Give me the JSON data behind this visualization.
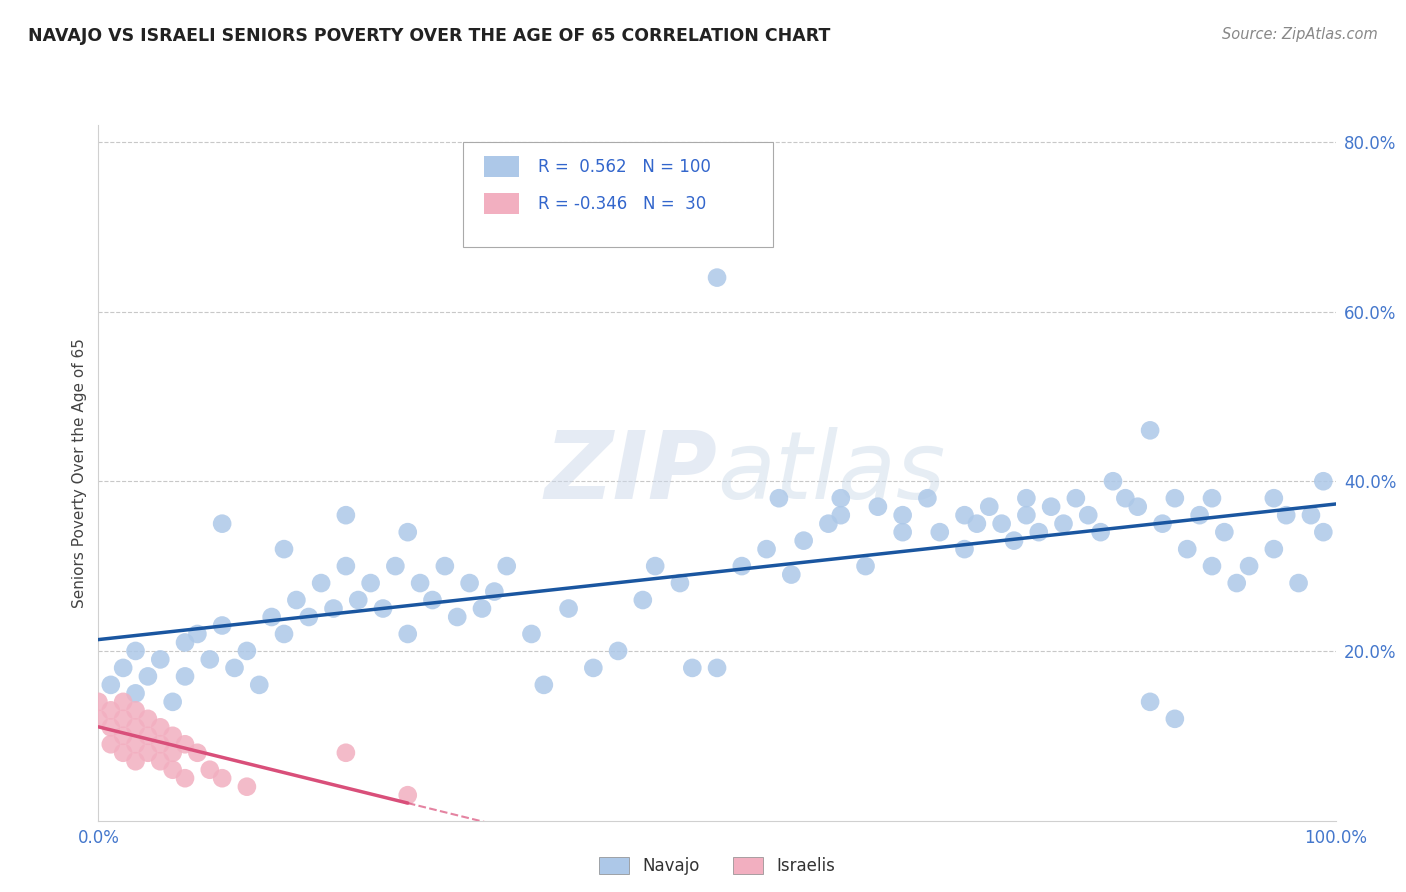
{
  "title": "NAVAJO VS ISRAELI SENIORS POVERTY OVER THE AGE OF 65 CORRELATION CHART",
  "source": "Source: ZipAtlas.com",
  "ylabel": "Seniors Poverty Over the Age of 65",
  "navajo_R": 0.562,
  "navajo_N": 100,
  "israeli_R": -0.346,
  "israeli_N": 30,
  "watermark": "ZIPatlas",
  "navajo_color": "#adc8e8",
  "israeli_color": "#f2afc0",
  "navajo_line_color": "#1a56a0",
  "israeli_line_color": "#d94f7a",
  "navajo_points": [
    [
      0.01,
      0.16
    ],
    [
      0.02,
      0.18
    ],
    [
      0.03,
      0.15
    ],
    [
      0.03,
      0.2
    ],
    [
      0.04,
      0.17
    ],
    [
      0.05,
      0.19
    ],
    [
      0.06,
      0.14
    ],
    [
      0.07,
      0.21
    ],
    [
      0.07,
      0.17
    ],
    [
      0.08,
      0.22
    ],
    [
      0.09,
      0.19
    ],
    [
      0.1,
      0.23
    ],
    [
      0.1,
      0.35
    ],
    [
      0.11,
      0.18
    ],
    [
      0.12,
      0.2
    ],
    [
      0.13,
      0.16
    ],
    [
      0.14,
      0.24
    ],
    [
      0.15,
      0.22
    ],
    [
      0.15,
      0.32
    ],
    [
      0.16,
      0.26
    ],
    [
      0.17,
      0.24
    ],
    [
      0.18,
      0.28
    ],
    [
      0.19,
      0.25
    ],
    [
      0.2,
      0.3
    ],
    [
      0.2,
      0.36
    ],
    [
      0.21,
      0.26
    ],
    [
      0.22,
      0.28
    ],
    [
      0.23,
      0.25
    ],
    [
      0.24,
      0.3
    ],
    [
      0.25,
      0.22
    ],
    [
      0.25,
      0.34
    ],
    [
      0.26,
      0.28
    ],
    [
      0.27,
      0.26
    ],
    [
      0.28,
      0.3
    ],
    [
      0.29,
      0.24
    ],
    [
      0.3,
      0.28
    ],
    [
      0.31,
      0.25
    ],
    [
      0.32,
      0.27
    ],
    [
      0.33,
      0.3
    ],
    [
      0.35,
      0.22
    ],
    [
      0.36,
      0.16
    ],
    [
      0.38,
      0.25
    ],
    [
      0.4,
      0.18
    ],
    [
      0.42,
      0.2
    ],
    [
      0.44,
      0.26
    ],
    [
      0.45,
      0.3
    ],
    [
      0.47,
      0.28
    ],
    [
      0.48,
      0.18
    ],
    [
      0.5,
      0.18
    ],
    [
      0.5,
      0.64
    ],
    [
      0.52,
      0.3
    ],
    [
      0.54,
      0.32
    ],
    [
      0.55,
      0.38
    ],
    [
      0.56,
      0.29
    ],
    [
      0.57,
      0.33
    ],
    [
      0.59,
      0.35
    ],
    [
      0.6,
      0.36
    ],
    [
      0.6,
      0.38
    ],
    [
      0.62,
      0.3
    ],
    [
      0.63,
      0.37
    ],
    [
      0.65,
      0.34
    ],
    [
      0.65,
      0.36
    ],
    [
      0.67,
      0.38
    ],
    [
      0.68,
      0.34
    ],
    [
      0.7,
      0.32
    ],
    [
      0.7,
      0.36
    ],
    [
      0.71,
      0.35
    ],
    [
      0.72,
      0.37
    ],
    [
      0.73,
      0.35
    ],
    [
      0.74,
      0.33
    ],
    [
      0.75,
      0.38
    ],
    [
      0.75,
      0.36
    ],
    [
      0.76,
      0.34
    ],
    [
      0.77,
      0.37
    ],
    [
      0.78,
      0.35
    ],
    [
      0.79,
      0.38
    ],
    [
      0.8,
      0.36
    ],
    [
      0.81,
      0.34
    ],
    [
      0.82,
      0.4
    ],
    [
      0.83,
      0.38
    ],
    [
      0.84,
      0.37
    ],
    [
      0.85,
      0.14
    ],
    [
      0.85,
      0.46
    ],
    [
      0.86,
      0.35
    ],
    [
      0.87,
      0.12
    ],
    [
      0.87,
      0.38
    ],
    [
      0.88,
      0.32
    ],
    [
      0.89,
      0.36
    ],
    [
      0.9,
      0.3
    ],
    [
      0.9,
      0.38
    ],
    [
      0.91,
      0.34
    ],
    [
      0.92,
      0.28
    ],
    [
      0.93,
      0.3
    ],
    [
      0.95,
      0.32
    ],
    [
      0.95,
      0.38
    ],
    [
      0.96,
      0.36
    ],
    [
      0.97,
      0.28
    ],
    [
      0.98,
      0.36
    ],
    [
      0.99,
      0.34
    ],
    [
      0.99,
      0.4
    ]
  ],
  "israeli_points": [
    [
      0.0,
      0.14
    ],
    [
      0.0,
      0.12
    ],
    [
      0.01,
      0.13
    ],
    [
      0.01,
      0.11
    ],
    [
      0.01,
      0.09
    ],
    [
      0.02,
      0.14
    ],
    [
      0.02,
      0.12
    ],
    [
      0.02,
      0.1
    ],
    [
      0.02,
      0.08
    ],
    [
      0.03,
      0.13
    ],
    [
      0.03,
      0.11
    ],
    [
      0.03,
      0.09
    ],
    [
      0.03,
      0.07
    ],
    [
      0.04,
      0.12
    ],
    [
      0.04,
      0.1
    ],
    [
      0.04,
      0.08
    ],
    [
      0.05,
      0.11
    ],
    [
      0.05,
      0.09
    ],
    [
      0.05,
      0.07
    ],
    [
      0.06,
      0.1
    ],
    [
      0.06,
      0.08
    ],
    [
      0.06,
      0.06
    ],
    [
      0.07,
      0.09
    ],
    [
      0.07,
      0.05
    ],
    [
      0.08,
      0.08
    ],
    [
      0.09,
      0.06
    ],
    [
      0.1,
      0.05
    ],
    [
      0.12,
      0.04
    ],
    [
      0.2,
      0.08
    ],
    [
      0.25,
      0.03
    ]
  ]
}
